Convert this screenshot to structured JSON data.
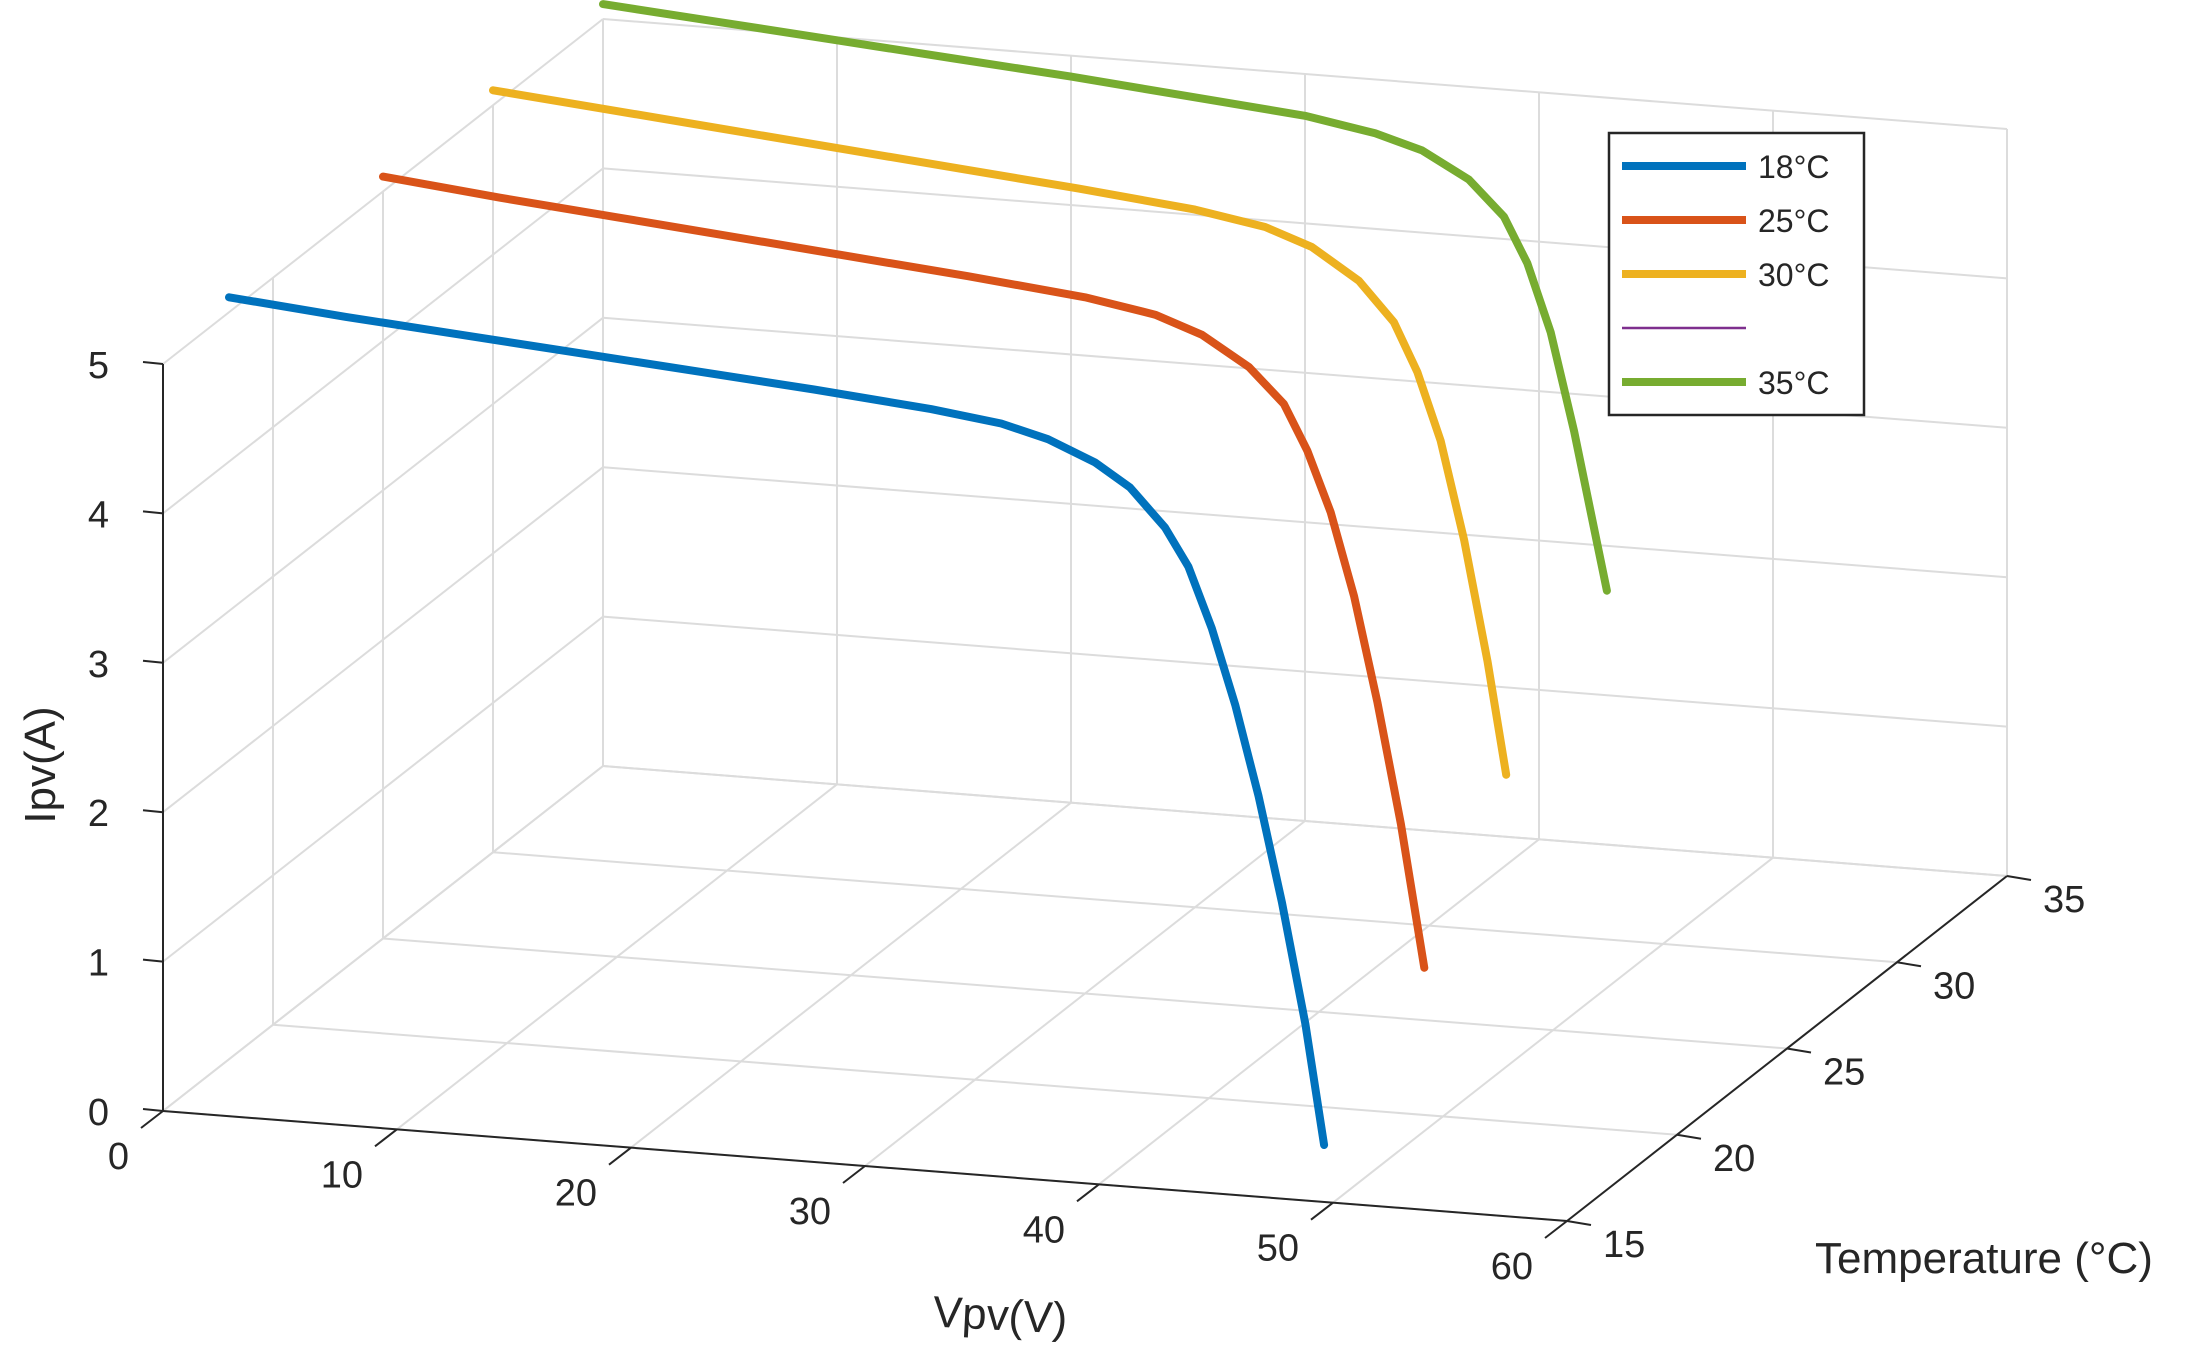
{
  "chart_data": {
    "type": "line3d",
    "xlabel": "Vpv(V)",
    "ylabel": "Temperature (°C)",
    "zlabel": "Ipv(A)",
    "xlim": [
      0,
      60
    ],
    "ylim": [
      15,
      35
    ],
    "zlim": [
      0,
      5
    ],
    "xticks": [
      "0",
      "10",
      "20",
      "30",
      "40",
      "50",
      "60"
    ],
    "yticks": [
      "15",
      "20",
      "25",
      "30",
      "35"
    ],
    "zticks": [
      "0",
      "1",
      "2",
      "3",
      "4",
      "5"
    ],
    "grid": true,
    "legend_position": "top-right",
    "series": [
      {
        "name": "18°C",
        "temperature": 18,
        "color": "#0072bd",
        "style": "solid",
        "points": [
          [
            0,
            5.1
          ],
          [
            5,
            5.03
          ],
          [
            10,
            4.97
          ],
          [
            15,
            4.91
          ],
          [
            20,
            4.85
          ],
          [
            25,
            4.79
          ],
          [
            30,
            4.72
          ],
          [
            33,
            4.66
          ],
          [
            35,
            4.58
          ],
          [
            37,
            4.45
          ],
          [
            38.5,
            4.3
          ],
          [
            40,
            4.05
          ],
          [
            41,
            3.8
          ],
          [
            42,
            3.4
          ],
          [
            43,
            2.9
          ],
          [
            44,
            2.3
          ],
          [
            45,
            1.6
          ],
          [
            46,
            0.8
          ],
          [
            46.8,
            0.0
          ]
        ]
      },
      {
        "name": "25°C",
        "temperature": 25,
        "color": "#d95319",
        "style": "solid",
        "points": [
          [
            0,
            5.1
          ],
          [
            5,
            5.02
          ],
          [
            10,
            4.95
          ],
          [
            15,
            4.88
          ],
          [
            20,
            4.81
          ],
          [
            25,
            4.74
          ],
          [
            30,
            4.66
          ],
          [
            33,
            4.58
          ],
          [
            35,
            4.47
          ],
          [
            37,
            4.28
          ],
          [
            38.5,
            4.05
          ],
          [
            39.5,
            3.75
          ],
          [
            40.5,
            3.35
          ],
          [
            41.5,
            2.8
          ],
          [
            42.5,
            2.1
          ],
          [
            43.5,
            1.3
          ],
          [
            44.5,
            0.35
          ]
        ]
      },
      {
        "name": "30°C",
        "temperature": 30,
        "color": "#edb120",
        "style": "solid",
        "points": [
          [
            0,
            5.1
          ],
          [
            5,
            5.03
          ],
          [
            10,
            4.96
          ],
          [
            15,
            4.89
          ],
          [
            20,
            4.82
          ],
          [
            25,
            4.75
          ],
          [
            30,
            4.67
          ],
          [
            33,
            4.59
          ],
          [
            35,
            4.48
          ],
          [
            37,
            4.28
          ],
          [
            38.5,
            4.02
          ],
          [
            39.5,
            3.7
          ],
          [
            40.5,
            3.25
          ],
          [
            41.5,
            2.6
          ],
          [
            42.5,
            1.8
          ],
          [
            43.3,
            1.05
          ]
        ]
      },
      {
        "name": "",
        "temperature": 35,
        "color": "#7e2f8e",
        "style": "dashed",
        "points": [
          [
            0,
            5.1
          ],
          [
            5,
            5.04
          ],
          [
            10,
            4.98
          ],
          [
            15,
            4.92
          ],
          [
            20,
            4.86
          ],
          [
            25,
            4.79
          ],
          [
            30,
            4.72
          ],
          [
            33,
            4.64
          ],
          [
            35,
            4.55
          ],
          [
            37,
            4.38
          ],
          [
            38.5,
            4.15
          ],
          [
            39.5,
            3.85
          ],
          [
            40.5,
            3.4
          ],
          [
            41.5,
            2.75
          ],
          [
            42.5,
            2.0
          ],
          [
            42.9,
            1.7
          ]
        ]
      },
      {
        "name": "35°C",
        "temperature": 35,
        "color": "#77ac30",
        "style": "solid",
        "points": [
          [
            0,
            5.1
          ],
          [
            5,
            5.04
          ],
          [
            10,
            4.98
          ],
          [
            15,
            4.92
          ],
          [
            20,
            4.86
          ],
          [
            25,
            4.79
          ],
          [
            30,
            4.72
          ],
          [
            33,
            4.64
          ],
          [
            35,
            4.55
          ],
          [
            37,
            4.38
          ],
          [
            38.5,
            4.15
          ],
          [
            39.5,
            3.85
          ],
          [
            40.5,
            3.4
          ],
          [
            41.5,
            2.75
          ],
          [
            42.5,
            2.0
          ],
          [
            42.9,
            1.7
          ]
        ]
      }
    ]
  }
}
